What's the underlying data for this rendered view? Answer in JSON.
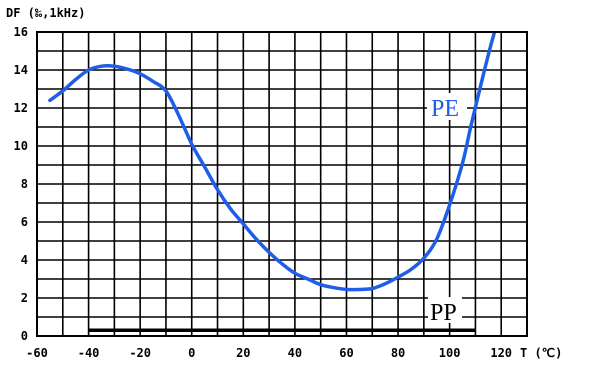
{
  "chart_data": {
    "type": "line",
    "ylabel": "DF (‰,1kHz)",
    "xlabel": "T (℃)",
    "xlim": [
      -60,
      130
    ],
    "ylim": [
      0,
      16
    ],
    "x_ticks": [
      -60,
      -40,
      -20,
      0,
      20,
      40,
      60,
      80,
      100,
      120
    ],
    "y_ticks": [
      0,
      2,
      4,
      6,
      8,
      10,
      12,
      14,
      16
    ],
    "grid": true,
    "grid_x_step": 10,
    "grid_y_step": 1,
    "series": [
      {
        "name": "PE",
        "color": "#1f5ee8",
        "x": [
          -55,
          -50,
          -45,
          -40,
          -35,
          -30,
          -25,
          -20,
          -15,
          -10,
          -5,
          0,
          5,
          10,
          15,
          20,
          25,
          30,
          35,
          40,
          45,
          50,
          55,
          60,
          65,
          70,
          75,
          80,
          85,
          90,
          95,
          100,
          105,
          108,
          111,
          115,
          118
        ],
        "y": [
          12.4,
          12.9,
          13.5,
          14.0,
          14.2,
          14.2,
          14.05,
          13.8,
          13.4,
          12.9,
          11.6,
          10.1,
          8.9,
          7.7,
          6.7,
          5.9,
          5.1,
          4.4,
          3.8,
          3.3,
          3.0,
          2.7,
          2.55,
          2.45,
          2.45,
          2.5,
          2.75,
          3.1,
          3.5,
          4.1,
          5.1,
          6.9,
          9.1,
          10.9,
          12.6,
          14.8,
          16.3
        ]
      },
      {
        "name": "PP",
        "color": "#000000",
        "x": [
          -40,
          110
        ],
        "y": [
          0.3,
          0.3
        ]
      }
    ]
  }
}
